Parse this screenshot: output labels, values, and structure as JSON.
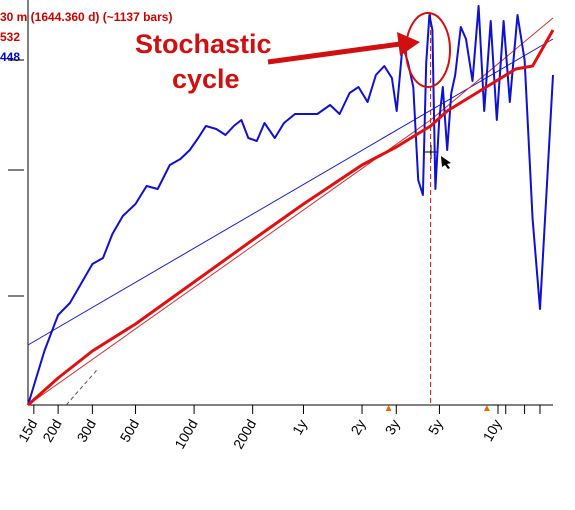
{
  "header": {
    "line1": "30 m (1644.360 d) (~1137 bars)",
    "line2": "532",
    "line3": "448"
  },
  "colors": {
    "red_series": "#e01010",
    "blue_series": "#1010d0",
    "thin_red": "#cc3333",
    "thin_blue": "#1a1ad0",
    "annotation": "#d01010",
    "cursor_line": "#d01010",
    "marker": "#e07000"
  },
  "annotation": {
    "line1": "Stochastic",
    "line2": "cycle"
  },
  "chart_data": {
    "type": "line",
    "x_scale": "log",
    "tick_labels": [
      "15d",
      "20d",
      "30d",
      "50d",
      "100d",
      "200d",
      "1y",
      "2y",
      "3y",
      "5y",
      "10y"
    ],
    "tick_days": [
      15,
      20,
      30,
      50,
      100,
      200,
      365,
      730,
      1095,
      1825,
      3650
    ],
    "xlim_days": [
      14,
      7000
    ],
    "series": [
      {
        "color": "red_series",
        "x": [
          14,
          20,
          30,
          50,
          100,
          200,
          365,
          730,
          1095,
          1644,
          2000,
          3000,
          4500,
          5500,
          7000
        ],
        "y": [
          0,
          0.09,
          0.18,
          0.27,
          0.41,
          0.55,
          0.67,
          0.8,
          0.86,
          0.93,
          0.98,
          1.05,
          1.12,
          1.13,
          1.25
        ]
      },
      {
        "color": "blue_series",
        "x": [
          14,
          17,
          20,
          23,
          26,
          30,
          34,
          38,
          43,
          50,
          57,
          65,
          75,
          85,
          95,
          105,
          115,
          130,
          145,
          160,
          175,
          190,
          210,
          230,
          260,
          290,
          330,
          380,
          430,
          500,
          560,
          630,
          700,
          780,
          860,
          950,
          1040,
          1100,
          1180,
          1260,
          1340,
          1420,
          1500,
          1560,
          1620,
          1680,
          1740,
          1820,
          1900,
          2000,
          2100,
          2200,
          2350,
          2500,
          2700,
          2900,
          3100,
          3350,
          3600,
          3900,
          4200,
          4600,
          5000,
          5500,
          6000,
          6500,
          7000
        ],
        "y": [
          0,
          0.18,
          0.3,
          0.34,
          0.4,
          0.47,
          0.49,
          0.57,
          0.63,
          0.67,
          0.73,
          0.72,
          0.8,
          0.82,
          0.85,
          0.89,
          0.93,
          0.92,
          0.9,
          0.93,
          0.95,
          0.89,
          0.88,
          0.94,
          0.89,
          0.94,
          0.97,
          0.97,
          0.97,
          1.0,
          0.97,
          1.04,
          1.06,
          1.01,
          1.1,
          1.13,
          1.09,
          0.98,
          1.2,
          1.14,
          1.06,
          0.75,
          0.7,
          1.14,
          1.3,
          1.25,
          0.72,
          0.95,
          1.06,
          0.85,
          1.04,
          1.1,
          1.26,
          1.22,
          1.08,
          1.33,
          0.98,
          1.28,
          0.95,
          1.28,
          1.01,
          1.3,
          1.15,
          0.62,
          0.32,
          0.72,
          1.1
        ]
      },
      {
        "color": "thin_blue",
        "x": [
          14,
          7000
        ],
        "y": [
          0.2,
          1.22
        ]
      },
      {
        "color": "thin_red",
        "x": [
          14,
          1644,
          7000
        ],
        "y": [
          0,
          0.95,
          1.29
        ]
      }
    ],
    "cursor_x_days": 1644,
    "markers_days": [
      1000,
      3200
    ]
  }
}
